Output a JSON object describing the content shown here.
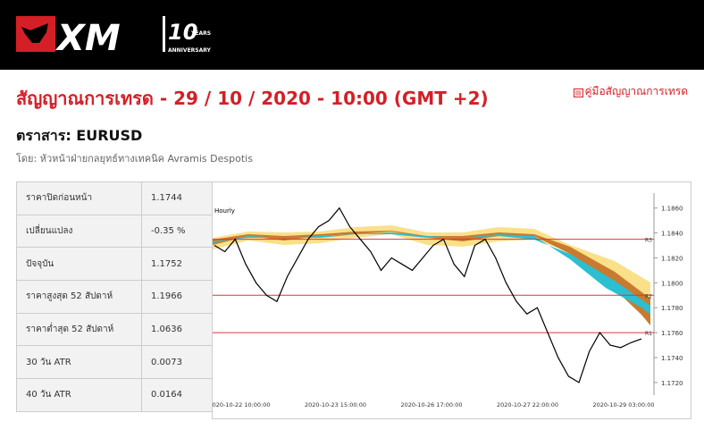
{
  "header": {
    "logo": "XM",
    "badge": "10",
    "badge_sub": "YEARS",
    "badge_caption": "ANNIVERSARY"
  },
  "title": "สัญญาณการเทรด - 29 / 10 / 2020 - 10:00 (GMT +2)",
  "guide_link": "คู่มือสัญญาณการเทรด",
  "instrument": "ตราสาร: EURUSD",
  "author": "โดย: หัวหน้าฝ่ายกลยุทธ์ทางเทคนิค Avramis Despotis",
  "table": {
    "rows": [
      [
        "ราคาปิดก่อนหน้า",
        "1.1744"
      ],
      [
        "เปลี่ยนแปลง",
        "-0.35 %"
      ],
      [
        "ปัจจุบัน",
        "1.1752"
      ],
      [
        "ราคาสูงสุด 52 สัปดาห์",
        "1.1966"
      ],
      [
        "ราคาต่ำสุด 52 สัปดาห์",
        "1.0636"
      ],
      [
        "30 วัน ATR",
        "0.0073"
      ],
      [
        "40 วัน ATR",
        "0.0164"
      ]
    ]
  },
  "chart_data": {
    "type": "line",
    "title": "Hourly",
    "color": "#000000",
    "values": [
      1.183,
      1.1825,
      1.1835,
      1.1815,
      1.18,
      1.179,
      1.1785,
      1.1805,
      1.182,
      1.1835,
      1.1845,
      1.185,
      1.186,
      1.1845,
      1.1835,
      1.1825,
      1.181,
      1.182,
      1.1815,
      1.181,
      1.182,
      1.183,
      1.1835,
      1.1815,
      1.1805,
      1.183,
      1.1835,
      1.182,
      1.18,
      1.1785,
      1.1775,
      1.178,
      1.176,
      1.174,
      1.1725,
      1.172,
      1.1745,
      1.176,
      1.175,
      1.1748,
      1.1752,
      1.1755
    ],
    "xtick_labels": [
      "2020-10-22 10:00:00",
      "2020-10-23 15:00:00",
      "2020-10-26 17:00:00",
      "2020-10-27 22:00:00",
      "2020-10-29 03:00:00"
    ],
    "ylim": [
      1.1712,
      1.1872
    ],
    "yticks": [
      {
        "value": 1.186,
        "label": "1.1860"
      },
      {
        "value": 1.184,
        "label": "1.1840"
      },
      {
        "value": 1.182,
        "label": "1.1820"
      },
      {
        "value": 1.18,
        "label": "1.1800"
      },
      {
        "value": 1.178,
        "label": "1.1780"
      },
      {
        "value": 1.176,
        "label": "1.1760"
      },
      {
        "value": 1.174,
        "label": "1.1740"
      },
      {
        "value": 1.172,
        "label": "1.1720"
      }
    ],
    "levels": [
      {
        "name": "R3",
        "value": 1.1835
      },
      {
        "name": "R2",
        "value": 1.179
      },
      {
        "name": "R1",
        "value": 1.176
      }
    ],
    "level_color": "#d9363e"
  }
}
